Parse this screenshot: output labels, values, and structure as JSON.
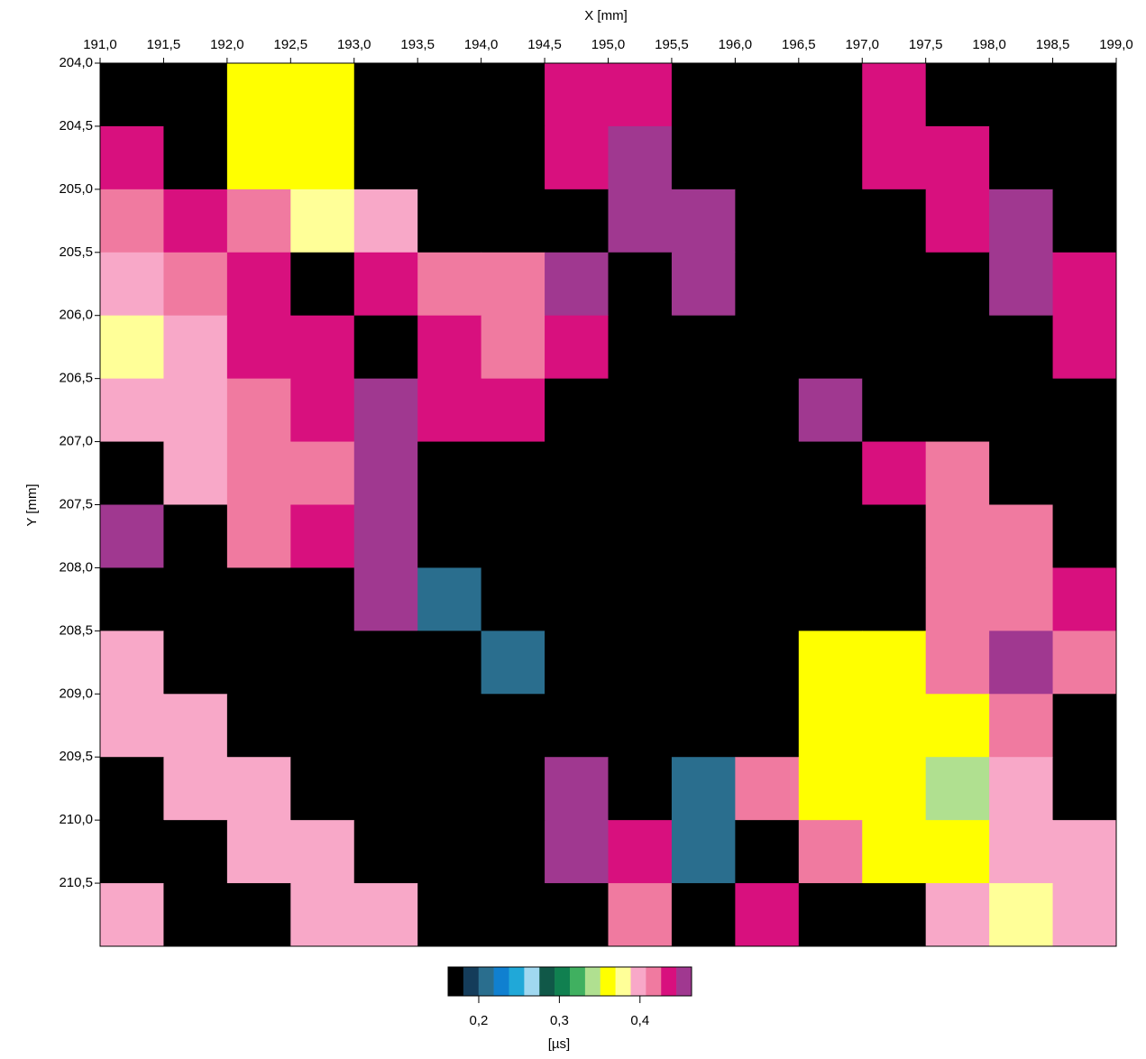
{
  "chart_data": {
    "type": "heatmap",
    "x_label": "X [mm]",
    "y_label": "Y [mm]",
    "xlim": [
      191,
      199
    ],
    "ylim": [
      204,
      211
    ],
    "xticks": [
      {
        "value": 191,
        "label": "191,0"
      },
      {
        "value": 191.5,
        "label": "191,5"
      },
      {
        "value": 192,
        "label": "192,0"
      },
      {
        "value": 192.5,
        "label": "192,5"
      },
      {
        "value": 193,
        "label": "193,0"
      },
      {
        "value": 193.5,
        "label": "193,5"
      },
      {
        "value": 194,
        "label": "194,0"
      },
      {
        "value": 194.5,
        "label": "194,5"
      },
      {
        "value": 195,
        "label": "195,0"
      },
      {
        "value": 195.5,
        "label": "195,5"
      },
      {
        "value": 196,
        "label": "196,0"
      },
      {
        "value": 196.5,
        "label": "196,5"
      },
      {
        "value": 197,
        "label": "197,0"
      },
      {
        "value": 197.5,
        "label": "197,5"
      },
      {
        "value": 198,
        "label": "198,0"
      },
      {
        "value": 198.5,
        "label": "198,5"
      },
      {
        "value": 199,
        "label": "199,0"
      }
    ],
    "yticks": [
      {
        "value": 204,
        "label": "204,0"
      },
      {
        "value": 204.5,
        "label": "204,5"
      },
      {
        "value": 205,
        "label": "205,0"
      },
      {
        "value": 205.5,
        "label": "205,5"
      },
      {
        "value": 206,
        "label": "206,0"
      },
      {
        "value": 206.5,
        "label": "206,5"
      },
      {
        "value": 207,
        "label": "207,0"
      },
      {
        "value": 207.5,
        "label": "207,5"
      },
      {
        "value": 208,
        "label": "208,0"
      },
      {
        "value": 208.5,
        "label": "208,5"
      },
      {
        "value": 209,
        "label": "209,0"
      },
      {
        "value": 209.5,
        "label": "209,5"
      },
      {
        "value": 210,
        "label": "210,0"
      },
      {
        "value": 210.5,
        "label": "210,5"
      }
    ],
    "x": [
      191.25,
      191.75,
      192.25,
      192.75,
      193.25,
      193.75,
      194.25,
      194.75,
      195.25,
      195.75,
      196.25,
      196.75,
      197.25,
      197.75,
      198.25,
      198.75
    ],
    "y": [
      204.25,
      204.75,
      205.25,
      205.75,
      206.25,
      206.75,
      207.25,
      207.75,
      208.25,
      208.75,
      209.25,
      209.75,
      210.25,
      210.75
    ],
    "z": [
      [
        0.17,
        0.17,
        0.36,
        0.36,
        0.17,
        0.17,
        0.17,
        0.44,
        0.44,
        0.17,
        0.17,
        0.17,
        0.44,
        0.17,
        0.17,
        0.17
      ],
      [
        0.44,
        0.17,
        0.36,
        0.36,
        0.17,
        0.17,
        0.17,
        0.44,
        0.46,
        0.17,
        0.17,
        0.17,
        0.44,
        0.44,
        0.17,
        0.17
      ],
      [
        0.42,
        0.44,
        0.42,
        0.38,
        0.4,
        0.17,
        0.17,
        0.17,
        0.46,
        0.46,
        0.17,
        0.17,
        0.17,
        0.44,
        0.46,
        0.17
      ],
      [
        0.4,
        0.42,
        0.44,
        0.17,
        0.44,
        0.42,
        0.42,
        0.46,
        0.17,
        0.46,
        0.17,
        0.17,
        0.17,
        0.17,
        0.46,
        0.44
      ],
      [
        0.38,
        0.4,
        0.44,
        0.44,
        0.17,
        0.44,
        0.42,
        0.44,
        0.17,
        0.17,
        0.17,
        0.17,
        0.17,
        0.17,
        0.17,
        0.44
      ],
      [
        0.4,
        0.4,
        0.42,
        0.44,
        0.46,
        0.44,
        0.44,
        0.17,
        0.17,
        0.17,
        0.17,
        0.46,
        0.17,
        0.17,
        0.17,
        0.17
      ],
      [
        0.17,
        0.4,
        0.42,
        0.42,
        0.46,
        0.17,
        0.17,
        0.17,
        0.17,
        0.17,
        0.17,
        0.17,
        0.44,
        0.42,
        0.17,
        0.17
      ],
      [
        0.46,
        0.17,
        0.42,
        0.44,
        0.46,
        0.17,
        0.17,
        0.17,
        0.17,
        0.17,
        0.17,
        0.17,
        0.17,
        0.42,
        0.42,
        0.17
      ],
      [
        0.17,
        0.17,
        0.17,
        0.17,
        0.46,
        0.21,
        0.17,
        0.17,
        0.17,
        0.17,
        0.17,
        0.17,
        0.17,
        0.42,
        0.42,
        0.44
      ],
      [
        0.4,
        0.17,
        0.17,
        0.17,
        0.17,
        0.17,
        0.21,
        0.17,
        0.17,
        0.17,
        0.17,
        0.36,
        0.36,
        0.42,
        0.46,
        0.42
      ],
      [
        0.4,
        0.4,
        0.17,
        0.17,
        0.17,
        0.17,
        0.17,
        0.17,
        0.17,
        0.17,
        0.17,
        0.36,
        0.36,
        0.36,
        0.42,
        0.17
      ],
      [
        0.17,
        0.4,
        0.4,
        0.17,
        0.17,
        0.17,
        0.17,
        0.46,
        0.17,
        0.21,
        0.42,
        0.36,
        0.36,
        0.34,
        0.4,
        0.17
      ],
      [
        0.17,
        0.17,
        0.4,
        0.4,
        0.17,
        0.17,
        0.17,
        0.46,
        0.44,
        0.21,
        0.17,
        0.42,
        0.36,
        0.36,
        0.4,
        0.4
      ],
      [
        0.4,
        0.17,
        0.17,
        0.4,
        0.4,
        0.17,
        0.17,
        0.17,
        0.42,
        0.17,
        0.44,
        0.17,
        0.17,
        0.4,
        0.38,
        0.4
      ]
    ],
    "colorbar": {
      "clim": [
        0.162,
        0.464
      ],
      "colors": [
        "#000000",
        "#143c5a",
        "#2a6e8e",
        "#1080d0",
        "#20a8d8",
        "#a0d8f0",
        "#105848",
        "#108050",
        "#40b060",
        "#b0e090",
        "#ffff00",
        "#ffff98",
        "#f8a8c8",
        "#f07aa0",
        "#d8107e",
        "#a03890"
      ],
      "ticks": [
        {
          "value": 0.2,
          "label": "0,2"
        },
        {
          "value": 0.3,
          "label": "0,3"
        },
        {
          "value": 0.4,
          "label": "0,4"
        }
      ],
      "label": "[µs]"
    }
  }
}
